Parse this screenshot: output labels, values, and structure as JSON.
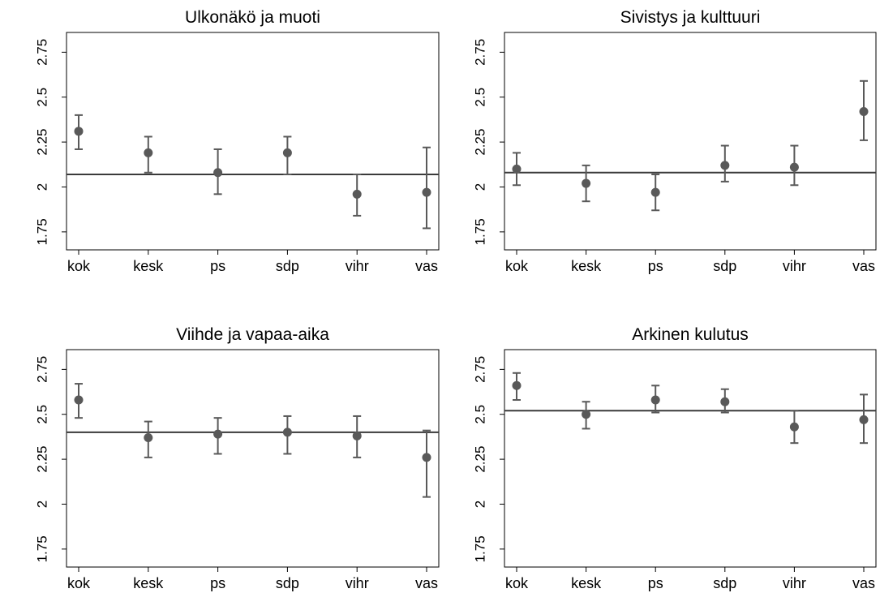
{
  "chart_data": [
    {
      "type": "scatter",
      "title": "Ulkonäkö ja muoti",
      "categories": [
        "kok",
        "kesk",
        "ps",
        "sdp",
        "vihr",
        "vas"
      ],
      "y_ticks": [
        "1.75",
        "2",
        "2.25",
        "2.5",
        "2.75"
      ],
      "ylim": [
        1.65,
        2.86
      ],
      "reference_line": 2.07,
      "values": [
        2.31,
        2.19,
        2.08,
        2.19,
        1.96,
        1.97
      ],
      "ci_low": [
        2.21,
        2.08,
        1.96,
        2.07,
        1.84,
        1.77
      ],
      "ci_high": [
        2.4,
        2.28,
        2.21,
        2.28,
        2.07,
        2.22
      ]
    },
    {
      "type": "scatter",
      "title": "Sivistys ja kulttuuri",
      "categories": [
        "kok",
        "kesk",
        "ps",
        "sdp",
        "vihr",
        "vas"
      ],
      "y_ticks": [
        "1.75",
        "2",
        "2.25",
        "2.5",
        "2.75"
      ],
      "ylim": [
        1.65,
        2.86
      ],
      "reference_line": 2.08,
      "values": [
        2.1,
        2.02,
        1.97,
        2.12,
        2.11,
        2.42
      ],
      "ci_low": [
        2.01,
        1.92,
        1.87,
        2.03,
        2.01,
        2.26
      ],
      "ci_high": [
        2.19,
        2.12,
        2.07,
        2.23,
        2.23,
        2.59
      ]
    },
    {
      "type": "scatter",
      "title": "Viihde ja vapaa-aika",
      "categories": [
        "kok",
        "kesk",
        "ps",
        "sdp",
        "vihr",
        "vas"
      ],
      "y_ticks": [
        "1.75",
        "2",
        "2.25",
        "2.5",
        "2.75"
      ],
      "ylim": [
        1.65,
        2.86
      ],
      "reference_line": 2.4,
      "values": [
        2.58,
        2.37,
        2.39,
        2.4,
        2.38,
        2.26
      ],
      "ci_low": [
        2.48,
        2.26,
        2.28,
        2.28,
        2.26,
        2.04
      ],
      "ci_high": [
        2.67,
        2.46,
        2.48,
        2.49,
        2.49,
        2.41
      ]
    },
    {
      "type": "scatter",
      "title": "Arkinen kulutus",
      "categories": [
        "kok",
        "kesk",
        "ps",
        "sdp",
        "vihr",
        "vas"
      ],
      "y_ticks": [
        "1.75",
        "2",
        "2.25",
        "2.5",
        "2.75"
      ],
      "ylim": [
        1.65,
        2.86
      ],
      "reference_line": 2.52,
      "values": [
        2.66,
        2.5,
        2.58,
        2.57,
        2.43,
        2.47
      ],
      "ci_low": [
        2.58,
        2.42,
        2.51,
        2.51,
        2.34,
        2.34
      ],
      "ci_high": [
        2.73,
        2.57,
        2.66,
        2.64,
        2.52,
        2.61
      ]
    }
  ]
}
